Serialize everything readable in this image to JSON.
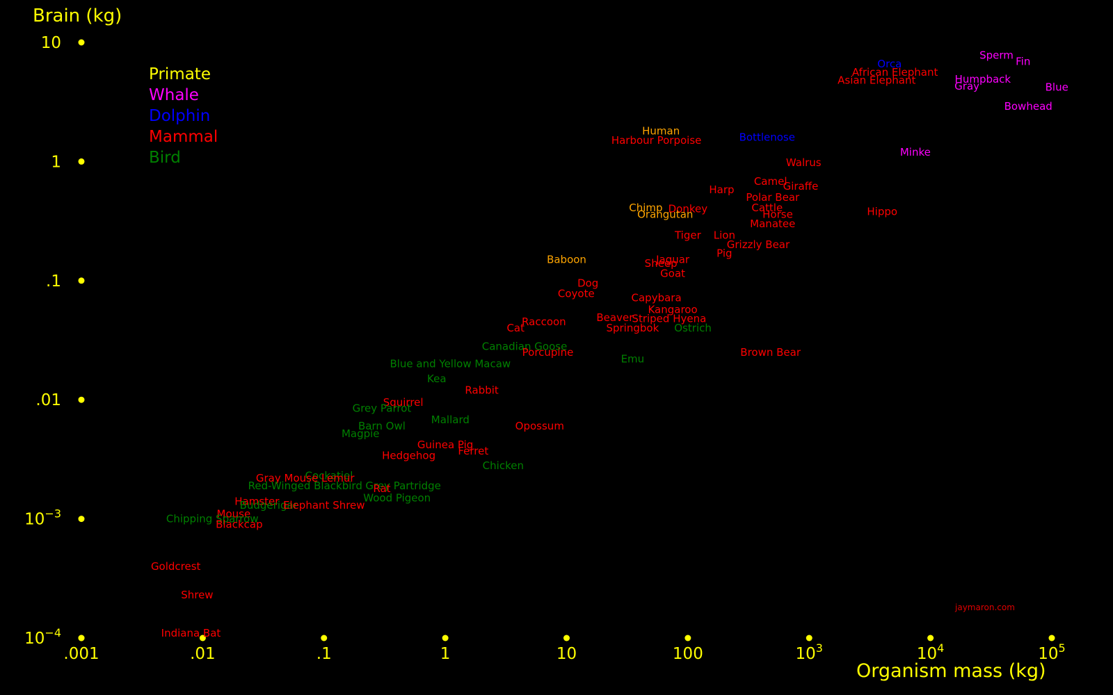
{
  "chart_data": {
    "type": "scatter",
    "xlabel": "Organism mass (kg)",
    "ylabel": "Brain (kg)",
    "x_scale": "log",
    "y_scale": "log",
    "xlim": [
      0.001,
      100000
    ],
    "ylim": [
      0.0001,
      10
    ],
    "x_ticks": [
      {
        "value": 0.001,
        "base": ".001"
      },
      {
        "value": 0.01,
        "base": ".01"
      },
      {
        "value": 0.1,
        "base": ".1"
      },
      {
        "value": 1,
        "base": "1"
      },
      {
        "value": 10,
        "base": "10"
      },
      {
        "value": 100,
        "base": "100"
      },
      {
        "value": 1000,
        "base": "10",
        "exp": "3"
      },
      {
        "value": 10000,
        "base": "10",
        "exp": "4"
      },
      {
        "value": 100000,
        "base": "10",
        "exp": "5"
      }
    ],
    "y_ticks": [
      {
        "value": 10,
        "base": "10"
      },
      {
        "value": 1,
        "base": "1"
      },
      {
        "value": 0.1,
        "base": ".1"
      },
      {
        "value": 0.01,
        "base": ".01"
      },
      {
        "value": 0.001,
        "base": "10",
        "exp": "−3"
      },
      {
        "value": 0.0001,
        "base": "10",
        "exp": "−4"
      }
    ],
    "tick_color": "#ffff00",
    "grid": false,
    "legend_position": "top-left",
    "legend": [
      {
        "name": "Primate",
        "color": "#ffff00"
      },
      {
        "name": "Whale",
        "color": "#ff00ff"
      },
      {
        "name": "Dolphin",
        "color": "#0000ff"
      },
      {
        "name": "Mammal",
        "color": "#ff0000"
      },
      {
        "name": "Bird",
        "color": "#008000"
      }
    ],
    "label_colors": {
      "primate": "#ffa500",
      "whale": "#ff00ff",
      "dolphin": "#0000ff",
      "mammal": "#ff0000",
      "bird": "#008000"
    },
    "points": [
      {
        "label": "Sperm",
        "group": "whale",
        "x": 35000,
        "y": 7.8
      },
      {
        "label": "Fin",
        "group": "whale",
        "x": 58000,
        "y": 6.9
      },
      {
        "label": "Orca",
        "group": "dolphin",
        "x": 4600,
        "y": 6.6
      },
      {
        "label": "African Elephant",
        "group": "mammal",
        "x": 5100,
        "y": 5.6
      },
      {
        "label": "Asian Elephant",
        "group": "mammal",
        "x": 3600,
        "y": 4.8
      },
      {
        "label": "Humpback",
        "group": "whale",
        "x": 27000,
        "y": 4.9
      },
      {
        "label": "Gray",
        "group": "whale",
        "x": 20000,
        "y": 4.3
      },
      {
        "label": "Blue",
        "group": "whale",
        "x": 110000,
        "y": 4.2
      },
      {
        "label": "Bowhead",
        "group": "whale",
        "x": 64000,
        "y": 2.9
      },
      {
        "label": "Human",
        "group": "primate",
        "x": 60,
        "y": 1.8
      },
      {
        "label": "Harbour Porpoise",
        "group": "mammal",
        "x": 55,
        "y": 1.5
      },
      {
        "label": "Bottlenose",
        "group": "dolphin",
        "x": 450,
        "y": 1.6
      },
      {
        "label": "Minke",
        "group": "whale",
        "x": 7500,
        "y": 1.2
      },
      {
        "label": "Walrus",
        "group": "mammal",
        "x": 900,
        "y": 0.98
      },
      {
        "label": "Camel",
        "group": "mammal",
        "x": 480,
        "y": 0.68
      },
      {
        "label": "Giraffe",
        "group": "mammal",
        "x": 850,
        "y": 0.62
      },
      {
        "label": "Harp",
        "group": "mammal",
        "x": 190,
        "y": 0.58
      },
      {
        "label": "Polar Bear",
        "group": "mammal",
        "x": 500,
        "y": 0.5
      },
      {
        "label": "Chimp",
        "group": "primate",
        "x": 45,
        "y": 0.41
      },
      {
        "label": "Donkey",
        "group": "mammal",
        "x": 100,
        "y": 0.4
      },
      {
        "label": "Cattle",
        "group": "mammal",
        "x": 450,
        "y": 0.41
      },
      {
        "label": "Orangutan",
        "group": "primate",
        "x": 65,
        "y": 0.36
      },
      {
        "label": "Horse",
        "group": "mammal",
        "x": 550,
        "y": 0.36
      },
      {
        "label": "Hippo",
        "group": "mammal",
        "x": 4000,
        "y": 0.38
      },
      {
        "label": "Manatee",
        "group": "mammal",
        "x": 500,
        "y": 0.3
      },
      {
        "label": "Tiger",
        "group": "mammal",
        "x": 100,
        "y": 0.24
      },
      {
        "label": "Lion",
        "group": "mammal",
        "x": 200,
        "y": 0.24
      },
      {
        "label": "Grizzly Bear",
        "group": "mammal",
        "x": 380,
        "y": 0.2
      },
      {
        "label": "Pig",
        "group": "mammal",
        "x": 200,
        "y": 0.17
      },
      {
        "label": "Baboon",
        "group": "primate",
        "x": 10,
        "y": 0.15
      },
      {
        "label": "Jaguar",
        "group": "mammal",
        "x": 75,
        "y": 0.15
      },
      {
        "label": "Sheep",
        "group": "mammal",
        "x": 60,
        "y": 0.14
      },
      {
        "label": "Goat",
        "group": "mammal",
        "x": 75,
        "y": 0.115
      },
      {
        "label": "Dog",
        "group": "mammal",
        "x": 15,
        "y": 0.095
      },
      {
        "label": "Coyote",
        "group": "mammal",
        "x": 12,
        "y": 0.078
      },
      {
        "label": "Capybara",
        "group": "mammal",
        "x": 55,
        "y": 0.072
      },
      {
        "label": "Kangaroo",
        "group": "mammal",
        "x": 75,
        "y": 0.057
      },
      {
        "label": "Beaver",
        "group": "mammal",
        "x": 25,
        "y": 0.049
      },
      {
        "label": "Striped Hyena",
        "group": "mammal",
        "x": 70,
        "y": 0.048
      },
      {
        "label": "Raccoon",
        "group": "mammal",
        "x": 6.5,
        "y": 0.045
      },
      {
        "label": "Cat",
        "group": "mammal",
        "x": 3.8,
        "y": 0.04
      },
      {
        "label": "Springbok",
        "group": "mammal",
        "x": 35,
        "y": 0.04
      },
      {
        "label": "Ostrich",
        "group": "bird",
        "x": 110,
        "y": 0.04
      },
      {
        "label": "Canadian Goose",
        "group": "bird",
        "x": 4.5,
        "y": 0.028
      },
      {
        "label": "Porcupine",
        "group": "mammal",
        "x": 7,
        "y": 0.025
      },
      {
        "label": "Brown Bear",
        "group": "mammal",
        "x": 480,
        "y": 0.025
      },
      {
        "label": "Emu",
        "group": "bird",
        "x": 35,
        "y": 0.022
      },
      {
        "label": "Blue and Yellow Macaw",
        "group": "bird",
        "x": 1.1,
        "y": 0.02
      },
      {
        "label": "Kea",
        "group": "bird",
        "x": 0.85,
        "y": 0.015
      },
      {
        "label": "Rabbit",
        "group": "mammal",
        "x": 2,
        "y": 0.012
      },
      {
        "label": "Squirrel",
        "group": "mammal",
        "x": 0.45,
        "y": 0.0095
      },
      {
        "label": "Grey Parrot",
        "group": "bird",
        "x": 0.3,
        "y": 0.0085
      },
      {
        "label": "Mallard",
        "group": "bird",
        "x": 1.1,
        "y": 0.0068
      },
      {
        "label": "Barn Owl",
        "group": "bird",
        "x": 0.3,
        "y": 0.006
      },
      {
        "label": "Opossum",
        "group": "mammal",
        "x": 6,
        "y": 0.006
      },
      {
        "label": "Magpie",
        "group": "bird",
        "x": 0.2,
        "y": 0.0052
      },
      {
        "label": "Guinea Pig",
        "group": "mammal",
        "x": 1,
        "y": 0.0042
      },
      {
        "label": "Ferret",
        "group": "mammal",
        "x": 1.7,
        "y": 0.0037
      },
      {
        "label": "Hedgehog",
        "group": "mammal",
        "x": 0.5,
        "y": 0.0034
      },
      {
        "label": "Chicken",
        "group": "bird",
        "x": 3,
        "y": 0.0028
      },
      {
        "label": "Cockatiel",
        "group": "bird",
        "x": 0.11,
        "y": 0.0023
      },
      {
        "label": "Gray Mouse Lemur",
        "group": "mammal",
        "x": 0.07,
        "y": 0.0022
      },
      {
        "label": "Red-Winged Blackbird",
        "group": "bird",
        "x": 0.07,
        "y": 0.0019
      },
      {
        "label": "Grey Partridge",
        "group": "bird",
        "x": 0.45,
        "y": 0.0019
      },
      {
        "label": "Rat",
        "group": "mammal",
        "x": 0.3,
        "y": 0.0018
      },
      {
        "label": "Wood Pigeon",
        "group": "bird",
        "x": 0.4,
        "y": 0.0015
      },
      {
        "label": "Hamster",
        "group": "mammal",
        "x": 0.028,
        "y": 0.0014
      },
      {
        "label": "Budgerigar",
        "group": "bird",
        "x": 0.035,
        "y": 0.0013
      },
      {
        "label": "Elephant Shrew",
        "group": "mammal",
        "x": 0.1,
        "y": 0.0013
      },
      {
        "label": "Mouse",
        "group": "mammal",
        "x": 0.018,
        "y": 0.0011
      },
      {
        "label": "Chipping Sparrow",
        "group": "bird",
        "x": 0.012,
        "y": 0.001
      },
      {
        "label": "Blackcap",
        "group": "mammal",
        "x": 0.02,
        "y": 0.0009
      },
      {
        "label": "Goldcrest",
        "group": "mammal",
        "x": 0.006,
        "y": 0.0004
      },
      {
        "label": "Shrew",
        "group": "mammal",
        "x": 0.009,
        "y": 0.00023
      },
      {
        "label": "Indiana Bat",
        "group": "mammal",
        "x": 0.008,
        "y": 0.00011
      }
    ]
  },
  "credit": "jaymaron.com"
}
